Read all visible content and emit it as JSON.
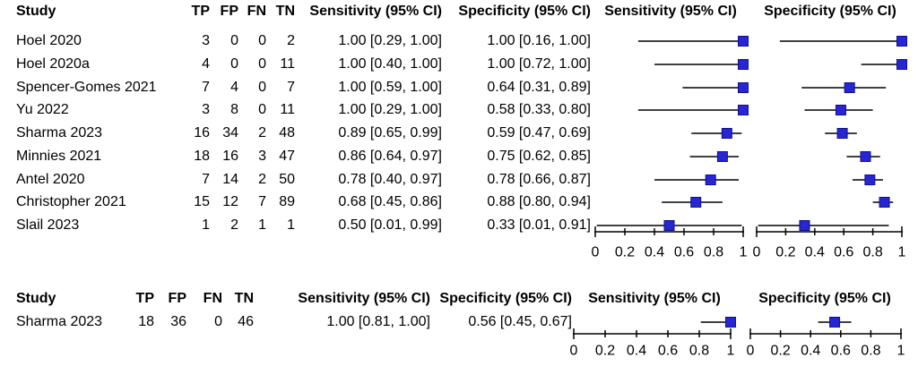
{
  "figure": {
    "background_color": "#ffffff",
    "text_color": "#000000",
    "ci_line_color": "#000000",
    "axis_color": "#000000",
    "marker_fill_color": "#2626D4",
    "marker_border_color": "#10108C"
  },
  "chart_data": [
    {
      "type": "scatter",
      "variant": "forest-plot-diagnostic-accuracy",
      "columns": {
        "study": "Study",
        "tp": "TP",
        "fp": "FP",
        "fn": "FN",
        "tn": "TN",
        "sens_ci": "Sensitivity (95% CI)",
        "spec_ci": "Specificity (95% CI)",
        "sens_plot": "Sensitivity (95% CI)",
        "spec_plot": "Specificity (95% CI)"
      },
      "x_axis": {
        "range": [
          0,
          1
        ],
        "ticks": [
          "0",
          "0.2",
          "0.4",
          "0.6",
          "0.8",
          "1"
        ],
        "grid": false
      },
      "rows": [
        {
          "study": "Hoel 2020",
          "tp": "3",
          "fp": "0",
          "fn": "0",
          "tn": "2",
          "sens_label": "1.00 [0.29, 1.00]",
          "spec_label": "1.00 [0.16, 1.00]",
          "sens": {
            "est": 1.0,
            "lo": 0.29,
            "hi": 1.0
          },
          "spec": {
            "est": 1.0,
            "lo": 0.16,
            "hi": 1.0
          }
        },
        {
          "study": "Hoel 2020a",
          "tp": "4",
          "fp": "0",
          "fn": "0",
          "tn": "11",
          "sens_label": "1.00 [0.40, 1.00]",
          "spec_label": "1.00 [0.72, 1.00]",
          "sens": {
            "est": 1.0,
            "lo": 0.4,
            "hi": 1.0
          },
          "spec": {
            "est": 1.0,
            "lo": 0.72,
            "hi": 1.0
          }
        },
        {
          "study": "Spencer-Gomes 2021",
          "tp": "7",
          "fp": "4",
          "fn": "0",
          "tn": "7",
          "sens_label": "1.00 [0.59, 1.00]",
          "spec_label": "0.64 [0.31, 0.89]",
          "sens": {
            "est": 1.0,
            "lo": 0.59,
            "hi": 1.0
          },
          "spec": {
            "est": 0.64,
            "lo": 0.31,
            "hi": 0.89
          }
        },
        {
          "study": "Yu 2022",
          "tp": "3",
          "fp": "8",
          "fn": "0",
          "tn": "11",
          "sens_label": "1.00 [0.29, 1.00]",
          "spec_label": "0.58 [0.33, 0.80]",
          "sens": {
            "est": 1.0,
            "lo": 0.29,
            "hi": 1.0
          },
          "spec": {
            "est": 0.58,
            "lo": 0.33,
            "hi": 0.8
          }
        },
        {
          "study": "Sharma 2023",
          "tp": "16",
          "fp": "34",
          "fn": "2",
          "tn": "48",
          "sens_label": "0.89 [0.65, 0.99]",
          "spec_label": "0.59 [0.47, 0.69]",
          "sens": {
            "est": 0.89,
            "lo": 0.65,
            "hi": 0.99
          },
          "spec": {
            "est": 0.59,
            "lo": 0.47,
            "hi": 0.69
          }
        },
        {
          "study": "Minnies 2021",
          "tp": "18",
          "fp": "16",
          "fn": "3",
          "tn": "47",
          "sens_label": "0.86 [0.64, 0.97]",
          "spec_label": "0.75 [0.62, 0.85]",
          "sens": {
            "est": 0.86,
            "lo": 0.64,
            "hi": 0.97
          },
          "spec": {
            "est": 0.75,
            "lo": 0.62,
            "hi": 0.85
          }
        },
        {
          "study": "Antel 2020",
          "tp": "7",
          "fp": "14",
          "fn": "2",
          "tn": "50",
          "sens_label": "0.78 [0.40, 0.97]",
          "spec_label": "0.78 [0.66, 0.87]",
          "sens": {
            "est": 0.78,
            "lo": 0.4,
            "hi": 0.97
          },
          "spec": {
            "est": 0.78,
            "lo": 0.66,
            "hi": 0.87
          }
        },
        {
          "study": "Christopher 2021",
          "tp": "15",
          "fp": "12",
          "fn": "7",
          "tn": "89",
          "sens_label": "0.68 [0.45, 0.86]",
          "spec_label": "0.88 [0.80, 0.94]",
          "sens": {
            "est": 0.68,
            "lo": 0.45,
            "hi": 0.86
          },
          "spec": {
            "est": 0.88,
            "lo": 0.8,
            "hi": 0.94
          }
        },
        {
          "study": "Slail 2023",
          "tp": "1",
          "fp": "2",
          "fn": "1",
          "tn": "1",
          "sens_label": "0.50 [0.01, 0.99]",
          "spec_label": "0.33 [0.01, 0.91]",
          "sens": {
            "est": 0.5,
            "lo": 0.01,
            "hi": 0.99
          },
          "spec": {
            "est": 0.33,
            "lo": 0.01,
            "hi": 0.91
          }
        }
      ]
    },
    {
      "type": "scatter",
      "variant": "forest-plot-diagnostic-accuracy",
      "columns": {
        "study": "Study",
        "tp": "TP",
        "fp": "FP",
        "fn": "FN",
        "tn": "TN",
        "sens_ci": "Sensitivity (95% CI)",
        "spec_ci": "Specificity (95% CI)",
        "sens_plot": "Sensitivity (95% CI)",
        "spec_plot": "Specificity (95% CI)"
      },
      "x_axis": {
        "range": [
          0,
          1
        ],
        "ticks": [
          "0",
          "0.2",
          "0.4",
          "0.6",
          "0.8",
          "1"
        ],
        "grid": false
      },
      "rows": [
        {
          "study": "Sharma 2023",
          "tp": "18",
          "fp": "36",
          "fn": "0",
          "tn": "46",
          "sens_label": "1.00 [0.81, 1.00]",
          "spec_label": "0.56 [0.45, 0.67]",
          "sens": {
            "est": 1.0,
            "lo": 0.81,
            "hi": 1.0
          },
          "spec": {
            "est": 0.56,
            "lo": 0.45,
            "hi": 0.67
          }
        }
      ]
    }
  ]
}
